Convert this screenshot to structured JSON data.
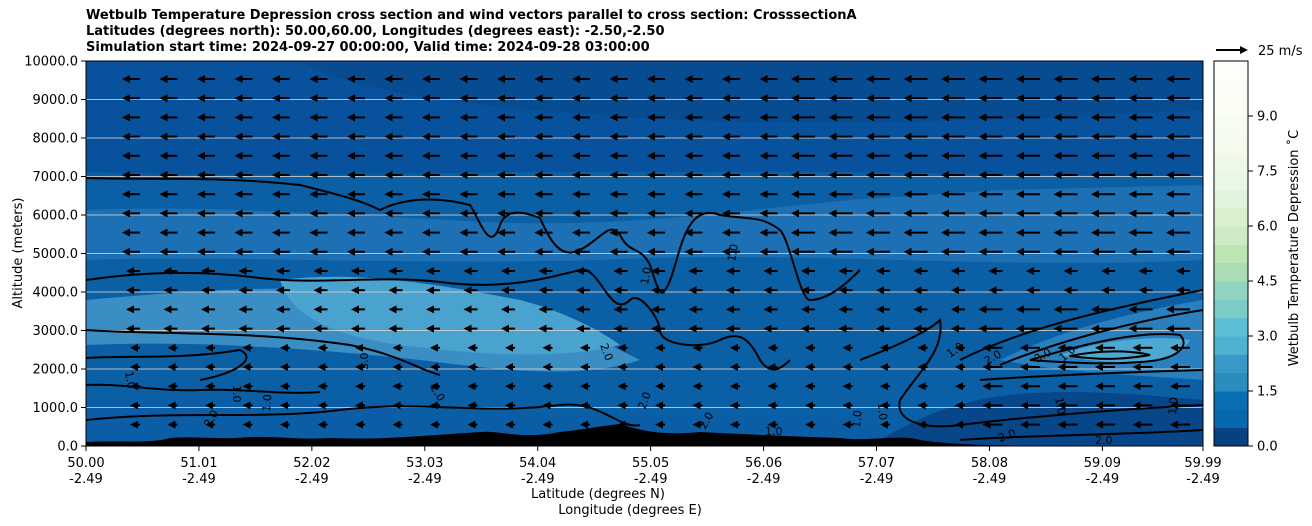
{
  "title_lines": [
    "Wetbulb Temperature Depression cross section and wind vectors parallel to cross section: CrosssectionA",
    "Latitudes (degrees north): 50.00,60.00, Longitudes (degrees east): -2.50,-2.50",
    "Simulation start time: 2024-09-27 00:00:00, Valid time: 2024-09-28 03:00:00"
  ],
  "chart_data": {
    "type": "heatmap",
    "ylabel": "Altitude (meters)",
    "xlabel_lat": "Latitude (degrees N)",
    "xlabel_lon": "Longitude (degrees E)",
    "ylim": [
      0,
      10000
    ],
    "xlim": [
      50.0,
      59.99
    ],
    "y_ticks": [
      "0.0",
      "1000.0",
      "2000.0",
      "3000.0",
      "4000.0",
      "5000.0",
      "6000.0",
      "7000.0",
      "8000.0",
      "9000.0",
      "10000.0"
    ],
    "x_ticks_lat": [
      "50.00",
      "51.01",
      "52.02",
      "53.03",
      "54.04",
      "55.05",
      "56.06",
      "57.07",
      "58.08",
      "59.09",
      "59.99"
    ],
    "x_ticks_lon": [
      "-2.49",
      "-2.49",
      "-2.49",
      "-2.49",
      "-2.49",
      "-2.49",
      "-2.49",
      "-2.49",
      "-2.49",
      "-2.49",
      "-2.49"
    ],
    "colorbar": {
      "label": "Wetbulb Temperature Depression ˚C",
      "range": [
        0,
        10.5
      ],
      "ticks": [
        "0.0",
        "1.5",
        "3.0",
        "4.5",
        "6.0",
        "7.5",
        "9.0"
      ]
    },
    "quiver_key": "25 m/s",
    "contour_labels": [
      "1.0",
      "2.0",
      "3.0"
    ],
    "grid": "horizontal"
  }
}
